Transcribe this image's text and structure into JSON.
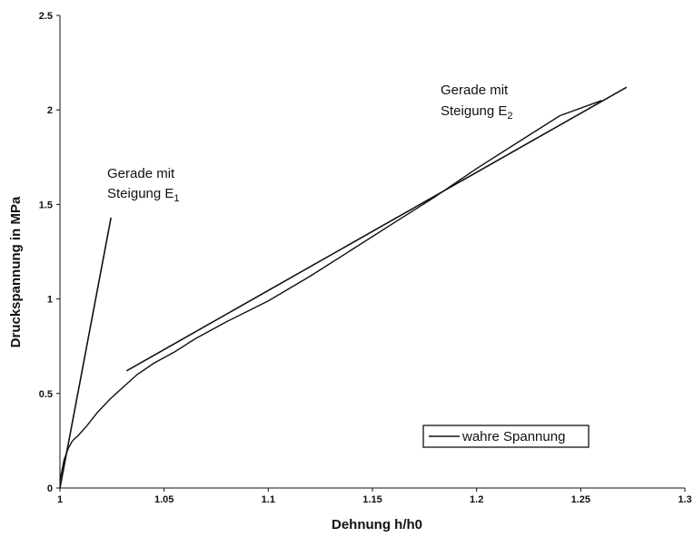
{
  "chart_data": {
    "type": "line",
    "xlabel": "Dehnung h/h0",
    "ylabel": "Druckspannung in MPa",
    "xlim": [
      1,
      1.3
    ],
    "ylim": [
      0,
      2.5
    ],
    "x_ticks": [
      1,
      1.05,
      1.1,
      1.15,
      1.2,
      1.25,
      1.3
    ],
    "x_tick_labels": [
      "1",
      "1.05",
      "1.1",
      "1.15",
      "1.2",
      "1.25",
      "1.3"
    ],
    "y_ticks": [
      0,
      0.5,
      1,
      1.5,
      2,
      2.5
    ],
    "y_tick_labels": [
      "0",
      "0.5",
      "1",
      "1.5",
      "2",
      "2.5"
    ],
    "grid": false,
    "legend": {
      "position": "bottom-right",
      "entries": [
        "wahre Spannung"
      ]
    },
    "series": [
      {
        "name": "wahre Spannung",
        "color": "#111111",
        "x": [
          1.0,
          1.002,
          1.004,
          1.006,
          1.009,
          1.013,
          1.018,
          1.024,
          1.03,
          1.037,
          1.045,
          1.055,
          1.065,
          1.08,
          1.1,
          1.12,
          1.14,
          1.16,
          1.18,
          1.2,
          1.22,
          1.24,
          1.26
        ],
        "y": [
          0.04,
          0.15,
          0.21,
          0.25,
          0.28,
          0.33,
          0.4,
          0.47,
          0.53,
          0.6,
          0.66,
          0.72,
          0.79,
          0.88,
          0.99,
          1.12,
          1.26,
          1.4,
          1.54,
          1.69,
          1.83,
          1.97,
          2.05
        ]
      }
    ],
    "reference_lines": [
      {
        "label_line1": "Gerade mit",
        "label_line2": "Steigung E",
        "subscript": "1",
        "x": [
          1.0,
          1.0245
        ],
        "y": [
          0.0,
          1.43
        ]
      },
      {
        "label_line1": "Gerade mit",
        "label_line2": "Steigung E",
        "subscript": "2",
        "x": [
          1.032,
          1.272
        ],
        "y": [
          0.62,
          2.12
        ]
      }
    ]
  }
}
